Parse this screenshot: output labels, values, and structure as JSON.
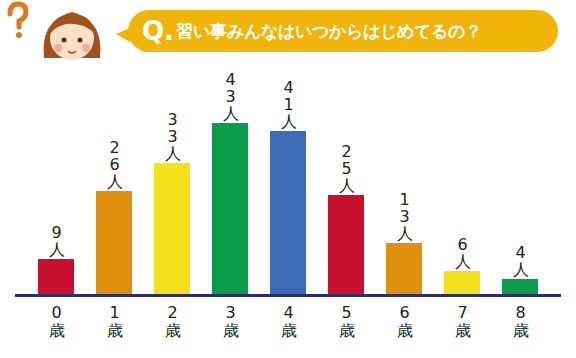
{
  "chart_data": {
    "type": "bar",
    "title": "Q.習い事みんなはいつからはじめてるの？",
    "categories": [
      "0歳",
      "1歳",
      "2歳",
      "3歳",
      "4歳",
      "5歳",
      "6歳",
      "7歳",
      "8歳"
    ],
    "values": [
      9,
      26,
      33,
      43,
      41,
      25,
      13,
      6,
      4
    ],
    "value_labels": [
      "9人",
      "26人",
      "33人",
      "43人",
      "41人",
      "25人",
      "13人",
      "6人",
      "4人"
    ],
    "colors": [
      "#c8102e",
      "#e0900f",
      "#f5e11a",
      "#0a9b4b",
      "#3b6cb5",
      "#c8102e",
      "#e0900f",
      "#f5e11a",
      "#0a9b4b"
    ],
    "data_labels": true,
    "tick_labels": "x",
    "grid": false
  }
}
